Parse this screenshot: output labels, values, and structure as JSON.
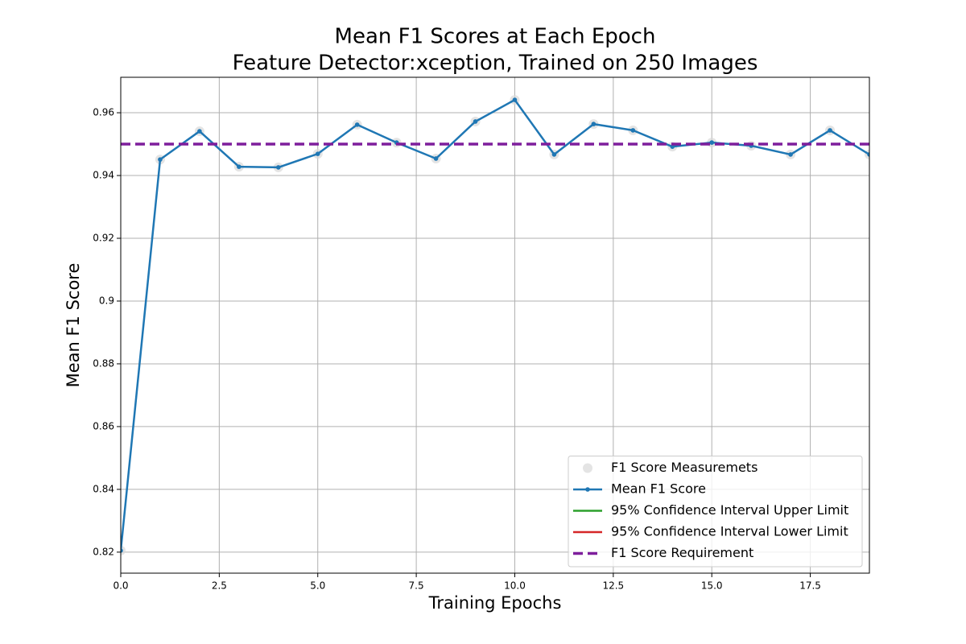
{
  "chart_data": {
    "type": "line",
    "title": "Mean F1 Scores at Each Epoch",
    "subtitle": "Feature Detector:xception, Trained on 250 Images",
    "x_label": "Training Epochs",
    "y_label": "Mean F1 Score",
    "x": [
      0,
      1,
      2,
      3,
      4,
      5,
      6,
      7,
      8,
      9,
      10,
      11,
      12,
      13,
      14,
      15,
      16,
      17,
      18,
      19
    ],
    "series": [
      {
        "name": "F1 Score Measuremets",
        "color": "#d9d9d9",
        "style": "marker",
        "values": [
          0.8205,
          0.9451,
          0.9541,
          0.9428,
          0.9426,
          0.9469,
          0.9562,
          0.9505,
          0.9454,
          0.9572,
          0.9641,
          0.9467,
          0.9564,
          0.9544,
          0.9492,
          0.9505,
          0.9495,
          0.9467,
          0.9544,
          0.9467
        ]
      },
      {
        "name": "Mean F1 Score",
        "color": "#1f77b4",
        "style": "line-marker",
        "values": [
          0.8205,
          0.9451,
          0.9541,
          0.9428,
          0.9426,
          0.9469,
          0.9562,
          0.9505,
          0.9454,
          0.9572,
          0.9641,
          0.9467,
          0.9564,
          0.9544,
          0.9492,
          0.9505,
          0.9495,
          0.9467,
          0.9544,
          0.9467
        ]
      },
      {
        "name": "95% Confidence Interval Upper Limit",
        "color": "#2ca02c",
        "style": "line",
        "values": [
          null,
          null,
          null,
          null,
          null,
          null,
          null,
          null,
          null,
          null,
          null,
          null,
          null,
          null,
          null,
          null,
          null,
          null,
          null,
          null
        ]
      },
      {
        "name": "95% Confidence Interval Lower Limit",
        "color": "#d62728",
        "style": "line",
        "values": [
          null,
          null,
          null,
          null,
          null,
          null,
          null,
          null,
          null,
          null,
          null,
          null,
          null,
          null,
          null,
          null,
          null,
          null,
          null,
          null
        ]
      },
      {
        "name": "F1 Score Requirement",
        "color": "#7e1e9c",
        "style": "hline-dashed",
        "value": 0.95
      }
    ],
    "xlim": [
      0,
      19
    ],
    "xticks": [
      {
        "value": 0,
        "label": "0.0"
      },
      2.5,
      {
        "value": 5,
        "label": "5.0"
      },
      7.5,
      {
        "value": 10,
        "label": "10.0"
      },
      12.5,
      {
        "value": 15,
        "label": "15.0"
      },
      17.5
    ],
    "ylim": [
      0.8133,
      0.9713
    ],
    "yticks": [
      0.82,
      0.84,
      0.86,
      0.88,
      0.9,
      0.92,
      0.94,
      0.96
    ],
    "grid": true,
    "legend": "lower right"
  }
}
